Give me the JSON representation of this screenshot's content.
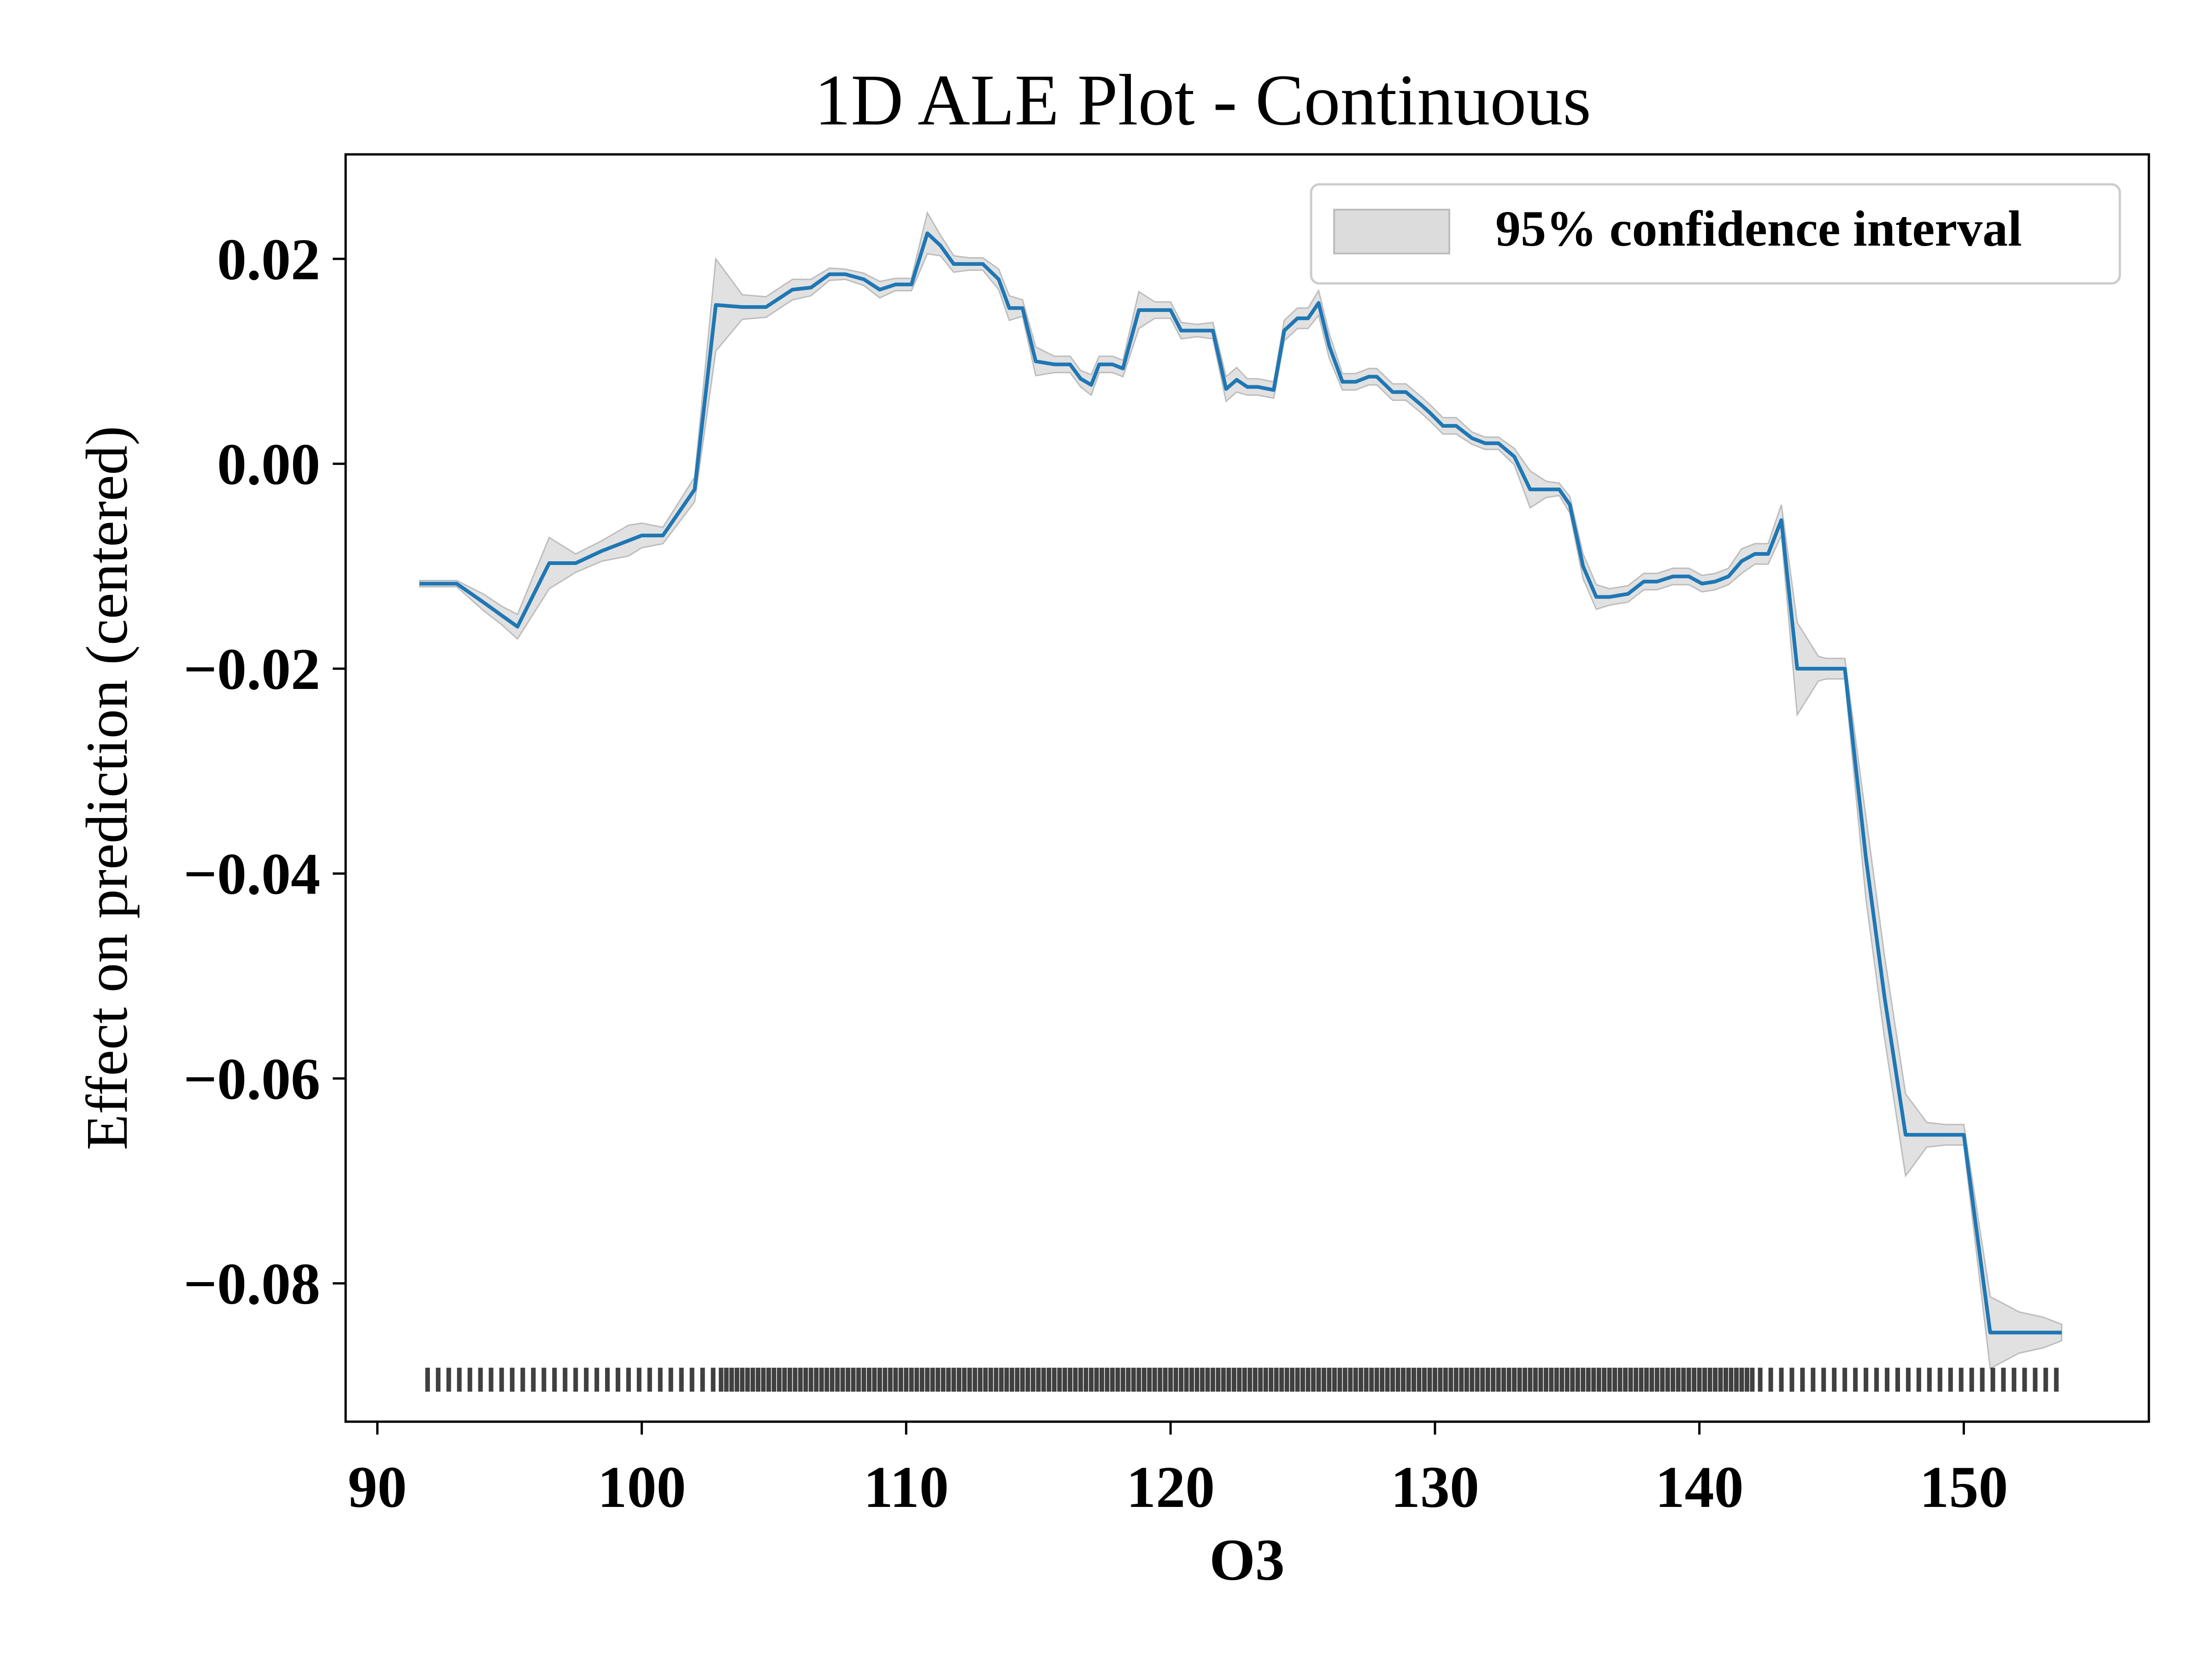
{
  "chart_data": {
    "type": "line",
    "title": "1D ALE Plot - Continuous",
    "xlabel": "O3",
    "ylabel": "Effect on prediction (centered)",
    "xlim": [
      88.8,
      157.0
    ],
    "ylim": [
      -0.0935,
      0.0302
    ],
    "x_ticks": [
      90,
      100,
      110,
      120,
      130,
      140,
      150
    ],
    "x_tick_labels": [
      "90",
      "100",
      "110",
      "120",
      "130",
      "140",
      "150"
    ],
    "y_ticks": [
      0.02,
      0.0,
      -0.02,
      -0.04,
      -0.06,
      -0.08
    ],
    "y_tick_labels": [
      "0.02",
      "0.00",
      "−0.02",
      "−0.04",
      "−0.06",
      "−0.08"
    ],
    "grid": false,
    "legend": {
      "position": "top-right",
      "entries": [
        "95% confidence interval"
      ]
    },
    "colors": {
      "line": "#1f77b4",
      "band": "#dcdcdc",
      "band_edge": "#bdbdbd",
      "rug": "#000000",
      "axes": "#000000"
    },
    "series": [
      {
        "x": [
          91.6,
          92.1,
          93.0,
          94.0,
          94.7,
          95.3,
          96.5,
          97.5,
          98.5,
          99.5,
          100.0,
          100.8,
          102.0,
          102.8,
          103.8,
          104.7,
          105.7,
          106.4,
          107.1,
          107.7,
          108.4,
          109.0,
          109.6,
          110.2,
          110.8,
          111.3,
          111.8,
          112.4,
          112.9,
          113.5,
          113.9,
          114.4,
          114.9,
          115.6,
          116.2,
          116.6,
          117.0,
          117.3,
          117.8,
          118.2,
          118.8,
          119.4,
          120.0,
          120.4,
          121.0,
          121.6,
          122.1,
          122.5,
          122.9,
          123.3,
          123.9,
          124.3,
          124.8,
          125.2,
          125.6,
          126.0,
          126.5,
          127.0,
          127.5,
          127.8,
          128.4,
          128.9,
          129.5,
          129.8,
          130.3,
          130.8,
          131.4,
          131.9,
          132.4,
          133.0,
          133.6,
          134.2,
          134.7,
          135.1,
          135.6,
          136.1,
          136.6,
          137.3,
          137.9,
          138.4,
          139.0,
          139.6,
          140.1,
          140.6,
          141.1,
          141.6,
          142.1,
          142.6,
          143.1,
          143.7,
          144.5,
          144.8,
          145.5,
          146.3,
          147.0,
          147.8,
          148.6,
          149.3,
          150.0,
          151.0,
          152.1,
          153.0,
          153.7
        ],
        "values": [
          -0.0117,
          -0.0117,
          -0.0117,
          -0.0135,
          -0.0148,
          -0.0159,
          -0.0097,
          -0.0097,
          -0.0085,
          -0.0075,
          -0.007,
          -0.007,
          -0.0025,
          0.0155,
          0.0153,
          0.0153,
          0.017,
          0.0172,
          0.0185,
          0.0185,
          0.018,
          0.017,
          0.0175,
          0.0175,
          0.0225,
          0.0213,
          0.0195,
          0.0195,
          0.0195,
          0.018,
          0.0152,
          0.0152,
          0.01,
          0.0097,
          0.0097,
          0.0083,
          0.0077,
          0.0097,
          0.0097,
          0.0093,
          0.015,
          0.015,
          0.015,
          0.013,
          0.013,
          0.013,
          0.0073,
          0.0082,
          0.0075,
          0.0075,
          0.0072,
          0.013,
          0.0142,
          0.0142,
          0.0157,
          0.0115,
          0.008,
          0.008,
          0.0085,
          0.0085,
          0.007,
          0.007,
          0.0057,
          0.005,
          0.0037,
          0.0037,
          0.0025,
          0.002,
          0.002,
          0.0007,
          -0.0025,
          -0.0025,
          -0.0025,
          -0.004,
          -0.01,
          -0.013,
          -0.013,
          -0.0127,
          -0.0115,
          -0.0115,
          -0.011,
          -0.011,
          -0.0117,
          -0.0115,
          -0.011,
          -0.0095,
          -0.0088,
          -0.0088,
          -0.0055,
          -0.02,
          -0.02,
          -0.02,
          -0.02,
          -0.0385,
          -0.052,
          -0.0655,
          -0.0655,
          -0.0655,
          -0.0655,
          -0.0848,
          -0.0848,
          -0.0848,
          -0.0848
        ],
        "ci_halfwidth": [
          0.0003,
          0.0003,
          0.0003,
          0.0008,
          0.0009,
          0.0012,
          0.0025,
          0.0009,
          0.001,
          0.0015,
          0.0012,
          0.0008,
          0.0012,
          0.0045,
          0.0012,
          0.001,
          0.001,
          0.0008,
          0.0006,
          0.0005,
          0.0006,
          0.0008,
          0.0006,
          0.0006,
          0.002,
          0.001,
          0.0008,
          0.0006,
          0.0006,
          0.001,
          0.0012,
          0.0008,
          0.0014,
          0.0008,
          0.0008,
          0.0008,
          0.001,
          0.0008,
          0.0008,
          0.0008,
          0.0018,
          0.0008,
          0.0008,
          0.0008,
          0.0006,
          0.0008,
          0.0012,
          0.0012,
          0.0008,
          0.0008,
          0.0008,
          0.001,
          0.001,
          0.001,
          0.0012,
          0.0012,
          0.0008,
          0.0008,
          0.0008,
          0.0008,
          0.0008,
          0.0008,
          0.0008,
          0.0008,
          0.0008,
          0.0008,
          0.0006,
          0.0006,
          0.0006,
          0.0008,
          0.0018,
          0.0008,
          0.0006,
          0.0008,
          0.0012,
          0.0012,
          0.0008,
          0.0008,
          0.0008,
          0.0008,
          0.0008,
          0.0008,
          0.0008,
          0.0008,
          0.0008,
          0.0012,
          0.001,
          0.001,
          0.0015,
          0.0045,
          0.0012,
          0.001,
          0.001,
          0.004,
          0.004,
          0.004,
          0.0012,
          0.001,
          0.001,
          0.0035,
          0.002,
          0.0015,
          0.0008
        ]
      }
    ],
    "rug": {
      "dense_range": [
        103,
        142
      ],
      "sparse_before": [
        91.9,
        92.3,
        92.7,
        93.1,
        93.5,
        93.9,
        94.3,
        94.7,
        95.1,
        95.5,
        95.9,
        96.3,
        96.7,
        97.1,
        97.5,
        97.9,
        98.3,
        98.7,
        99.1,
        99.5,
        99.9,
        100.3,
        100.7,
        101.1,
        101.5,
        101.9,
        102.3,
        102.7
      ],
      "sparse_after": [
        142.3,
        142.7,
        143.1,
        143.5,
        143.9,
        144.3,
        144.7,
        145.1,
        145.5,
        145.9,
        146.3,
        146.7,
        147.1,
        147.5,
        147.9,
        148.3,
        148.7,
        149.1,
        149.5,
        149.9,
        150.3,
        150.7,
        151.1,
        151.5,
        151.9,
        152.3,
        152.7,
        153.1,
        153.5
      ],
      "y_value": -0.0894
    }
  }
}
